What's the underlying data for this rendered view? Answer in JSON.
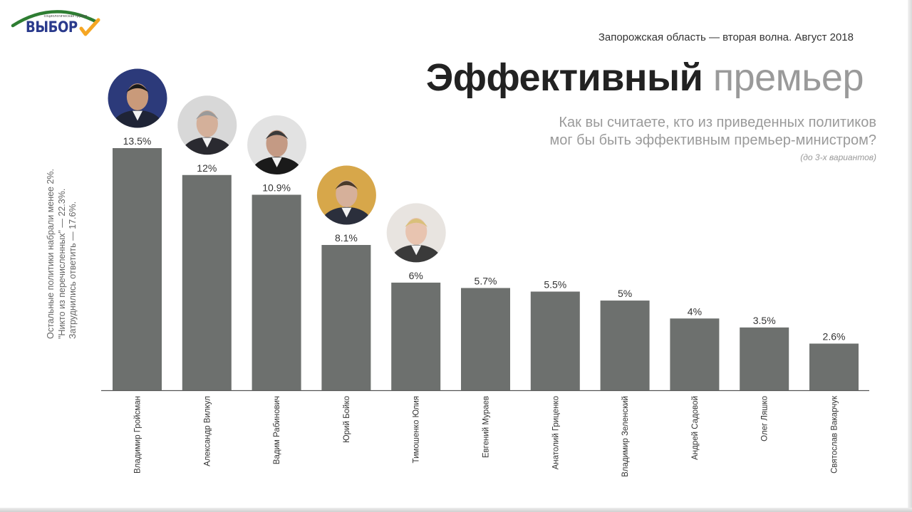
{
  "logo": {
    "small_text": "социологическая группа",
    "word": "ВЫБОР",
    "colors": {
      "text": "#2a3a8c",
      "arc": "#2e7d32",
      "check": "#f5a623"
    }
  },
  "header": {
    "wave": "Запорожская область — вторая волна. Август 2018",
    "title_bold": "Эффективный",
    "title_light": "премьер",
    "question_line1": "Как вы считаете, кто из приведенных политиков",
    "question_line2": "мог бы быть эффективным премьер-министром?",
    "note": "(до 3-х вариантов)"
  },
  "side_notes": [
    "Остальные политики набрали менее 2%.",
    "\"Никто из перечисленных\" — 22.3%.",
    "Затруднились ответить — 17.6%."
  ],
  "chart_data": {
    "type": "bar",
    "categories": [
      "Владимир Гройсман",
      "Александр Вилкул",
      "Вадим Рабинович",
      "Юрий Бойко",
      "Тимошенко Юлия",
      "Евгений Мураев",
      "Анатолий Гриценко",
      "Владимир Зеленский",
      "Андрей Садовой",
      "Олег Ляшко",
      "Святослав Вакарчук"
    ],
    "values": [
      13.5,
      12,
      10.9,
      8.1,
      6,
      5.7,
      5.5,
      5,
      4,
      3.5,
      2.6
    ],
    "value_labels": [
      "13.5%",
      "12%",
      "10.9%",
      "8.1%",
      "6%",
      "5.7%",
      "5.5%",
      "5%",
      "4%",
      "3.5%",
      "2.6%"
    ],
    "ylim": [
      0,
      13.5
    ],
    "grid": false,
    "bar_color": "#6d706e",
    "photos_for_first": 5
  }
}
